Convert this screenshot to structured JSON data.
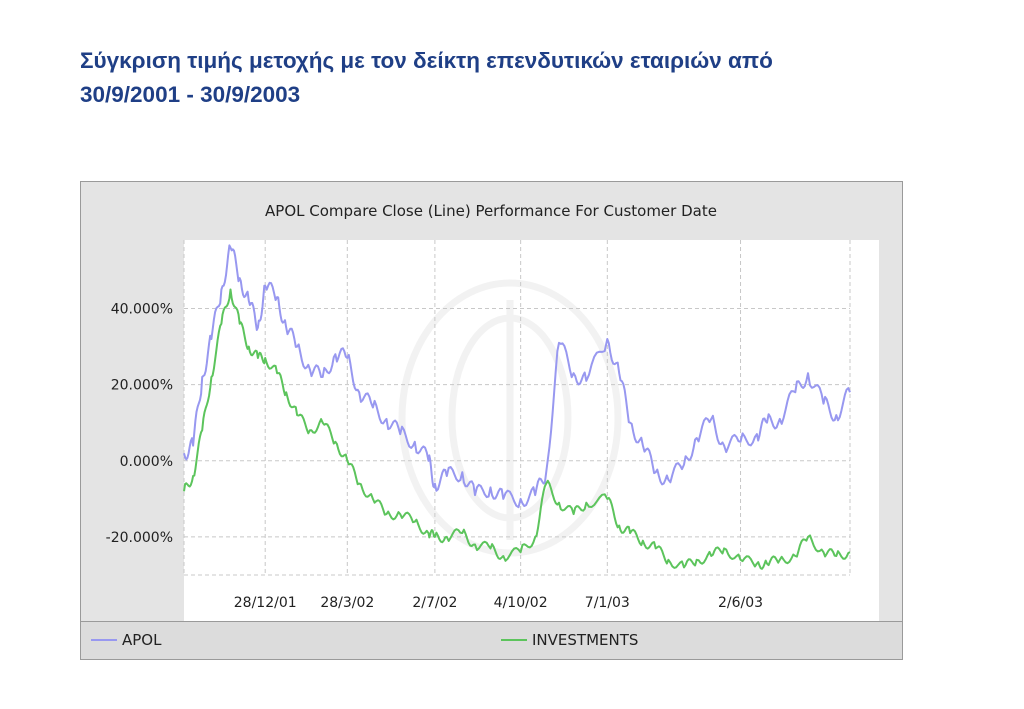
{
  "slide": {
    "title_line1": "Σύγκριση τιμής μετοχής με τον δείκτη επενδυτικών εταιριών από",
    "title_line2": "30/9/2001 - 30/9/2003"
  },
  "colors": {
    "apol": "#9898f0",
    "investments": "#5cc45c",
    "grid": "#c8c8c8"
  },
  "chart_data": {
    "type": "line",
    "title": "APOL Compare Close (Line) Performance For Customer Date",
    "xlabel": "",
    "ylabel": "",
    "x_tick_labels": [
      "28/12/01",
      "28/3/02",
      "2/7/02",
      "4/10/02",
      "7/1/03",
      "2/6/03"
    ],
    "x_ticks": [
      "2001-12-28",
      "2002-03-28",
      "2002-07-02",
      "2002-10-04",
      "2003-01-07",
      "2003-06-02"
    ],
    "x_range": [
      "2001-09-30",
      "2003-09-30"
    ],
    "y_tick_labels": [
      "40.000%",
      "20.000%",
      "0.000%",
      "-20.000%"
    ],
    "y_ticks": [
      40,
      20,
      0,
      -20
    ],
    "ylim": [
      -30,
      58
    ],
    "grid": true,
    "legend_position": "bottom",
    "series": [
      {
        "name": "APOL",
        "x": [
          "2001-09-30",
          "2001-10-10",
          "2001-10-20",
          "2001-10-30",
          "2001-11-10",
          "2001-11-20",
          "2001-11-30",
          "2001-12-10",
          "2001-12-20",
          "2001-12-28",
          "2002-01-10",
          "2002-01-20",
          "2002-02-01",
          "2002-02-15",
          "2002-03-01",
          "2002-03-15",
          "2002-03-28",
          "2002-04-10",
          "2002-04-25",
          "2002-05-10",
          "2002-05-25",
          "2002-06-10",
          "2002-06-25",
          "2002-07-02",
          "2002-07-15",
          "2002-08-01",
          "2002-08-15",
          "2002-09-01",
          "2002-09-15",
          "2002-10-04",
          "2002-10-20",
          "2002-11-01",
          "2002-11-15",
          "2002-12-01",
          "2002-12-15",
          "2003-01-07",
          "2003-01-20",
          "2003-02-01",
          "2003-02-15",
          "2003-03-01",
          "2003-03-15",
          "2003-04-01",
          "2003-04-15",
          "2003-05-01",
          "2003-05-15",
          "2003-06-02",
          "2003-06-20",
          "2003-07-01",
          "2003-07-15",
          "2003-08-01",
          "2003-08-15",
          "2003-09-01",
          "2003-09-15",
          "2003-09-30"
        ],
        "values": [
          2,
          4,
          22,
          32,
          45,
          56,
          48,
          42,
          35,
          46,
          43,
          35,
          30,
          24,
          22,
          28,
          27,
          18,
          14,
          11,
          7,
          5,
          0,
          -6,
          -4,
          -3,
          -9,
          -7,
          -10,
          -10,
          -9,
          -3,
          31,
          23,
          21,
          32,
          23,
          10,
          4,
          -3,
          -5,
          -1,
          6,
          11,
          4,
          5,
          7,
          10,
          11,
          18,
          23,
          15,
          12,
          18
        ]
      },
      {
        "name": "INVESTMENTS",
        "x": [
          "2001-09-30",
          "2001-10-10",
          "2001-10-20",
          "2001-10-30",
          "2001-11-10",
          "2001-11-20",
          "2001-11-30",
          "2001-12-10",
          "2001-12-20",
          "2001-12-28",
          "2002-01-10",
          "2002-01-20",
          "2002-02-01",
          "2002-02-15",
          "2002-03-01",
          "2002-03-15",
          "2002-03-28",
          "2002-04-10",
          "2002-04-25",
          "2002-05-10",
          "2002-05-25",
          "2002-06-10",
          "2002-06-25",
          "2002-07-02",
          "2002-07-15",
          "2002-08-01",
          "2002-08-15",
          "2002-09-01",
          "2002-09-15",
          "2002-10-04",
          "2002-10-20",
          "2002-11-01",
          "2002-11-15",
          "2002-12-01",
          "2002-12-15",
          "2003-01-07",
          "2003-01-20",
          "2003-02-01",
          "2003-02-15",
          "2003-03-01",
          "2003-03-15",
          "2003-04-01",
          "2003-04-15",
          "2003-05-01",
          "2003-05-15",
          "2003-06-02",
          "2003-06-20",
          "2003-07-01",
          "2003-07-15",
          "2003-08-01",
          "2003-08-15",
          "2003-09-01",
          "2003-09-15",
          "2003-09-30"
        ],
        "values": [
          -8,
          -4,
          8,
          22,
          36,
          45,
          36,
          30,
          27,
          27,
          23,
          18,
          12,
          8,
          10,
          5,
          0,
          -6,
          -10,
          -14,
          -14,
          -16,
          -19,
          -20,
          -20,
          -19,
          -22,
          -23,
          -25,
          -24,
          -20,
          -6,
          -11,
          -14,
          -11,
          -10,
          -17,
          -19,
          -21,
          -23,
          -26,
          -28,
          -26,
          -25,
          -23,
          -26,
          -27,
          -27,
          -26,
          -25,
          -20,
          -24,
          -25,
          -24
        ]
      }
    ]
  }
}
